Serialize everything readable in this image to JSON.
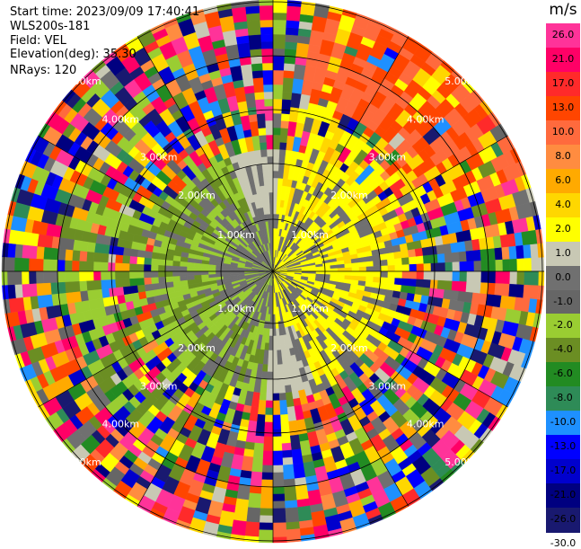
{
  "info": {
    "start_time": "Start time: 2023/09/09 17:40:41",
    "station": "WLS200s-181",
    "field": "Field: VEL",
    "elevation": "Elevation(deg): 35.30",
    "nrays": "NRays: 120"
  },
  "plot": {
    "type": "ppi",
    "field": "VEL",
    "n_rays": 120,
    "ring_labels": [
      "1.00km",
      "2.00km",
      "3.00km",
      "4.00km",
      "5.00km"
    ]
  },
  "colorbar": {
    "unit": "m/s",
    "ticks": [
      "26.0",
      "21.0",
      "17.0",
      "13.0",
      "10.0",
      "8.0",
      "6.0",
      "4.0",
      "2.0",
      "1.0",
      "0.0",
      "-1.0",
      "-2.0",
      "-4.0",
      "-6.0",
      "-8.0",
      "-10.0",
      "-13.0",
      "-17.0",
      "-21.0",
      "-26.0",
      "-30.0"
    ],
    "colors": [
      "#ff3399",
      "#ff0066",
      "#ff2a2a",
      "#ff4500",
      "#ff6a3d",
      "#ff8c40",
      "#ffaa00",
      "#ffd700",
      "#ffff00",
      "#c8c8b4",
      "#707070",
      "#666666",
      "#9acd32",
      "#6b8e23",
      "#228b22",
      "#2e8b57",
      "#1e90ff",
      "#0000ff",
      "#0000cd",
      "#000080",
      "#191970"
    ]
  }
}
